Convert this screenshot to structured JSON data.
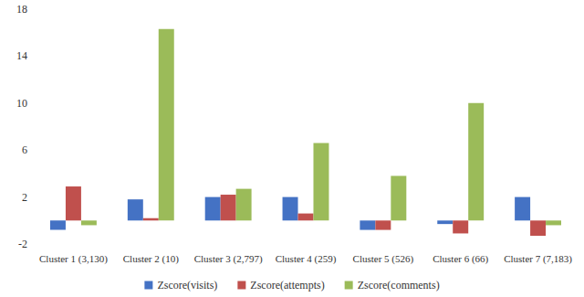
{
  "chart_data": {
    "type": "bar",
    "categories": [
      "Cluster 1 (3,130)",
      "Cluster 2 (10)",
      "Cluster 3 (2,797)",
      "Cluster 4 (259)",
      "Cluster 5 (526)",
      "Cluster 6 (66)",
      "Cluster 7 (7,183)"
    ],
    "series": [
      {
        "name": "Zscore(visits)",
        "color": "#4472c4",
        "values": [
          -0.8,
          1.8,
          2.0,
          2.0,
          -0.8,
          -0.3,
          2.0
        ]
      },
      {
        "name": "Zscore(attempts)",
        "color": "#c0504d",
        "values": [
          2.9,
          0.2,
          2.2,
          0.6,
          -0.8,
          -1.1,
          -1.3
        ]
      },
      {
        "name": "Zscore(comments)",
        "color": "#9bbb59",
        "values": [
          -0.4,
          16.3,
          2.7,
          6.6,
          3.8,
          10.0,
          -0.4
        ]
      }
    ],
    "ylim": [
      -2,
      18
    ],
    "yticks": [
      -2,
      2,
      6,
      10,
      14,
      18
    ],
    "grid": false,
    "legend": "bottom"
  }
}
